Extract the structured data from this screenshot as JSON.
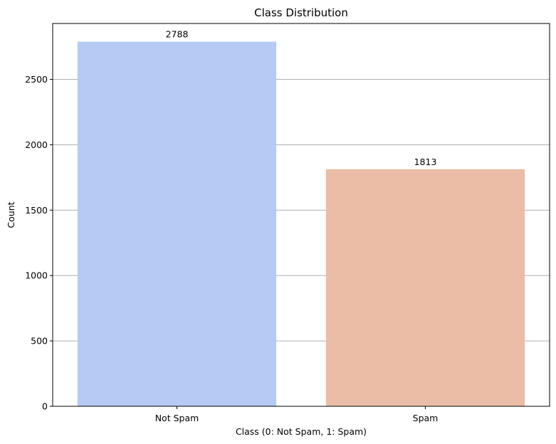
{
  "chart_data": {
    "type": "bar",
    "title": "Class Distribution",
    "xlabel": "Class (0: Not Spam, 1: Spam)",
    "ylabel": "Count",
    "categories": [
      "Not Spam",
      "Spam"
    ],
    "values": [
      2788,
      1813
    ],
    "data_labels": [
      "2788",
      "1813"
    ],
    "colors": [
      "#b5cbf3",
      "#ebbda7"
    ],
    "ylim": [
      0,
      2927.4
    ],
    "yticks": [
      0,
      500,
      1000,
      1500,
      2000,
      2500
    ],
    "ytick_labels": [
      "0",
      "500",
      "1000",
      "1500",
      "2000",
      "2500"
    ],
    "grid": "y",
    "grid_color": "#b0b0b0",
    "legend": "none"
  }
}
